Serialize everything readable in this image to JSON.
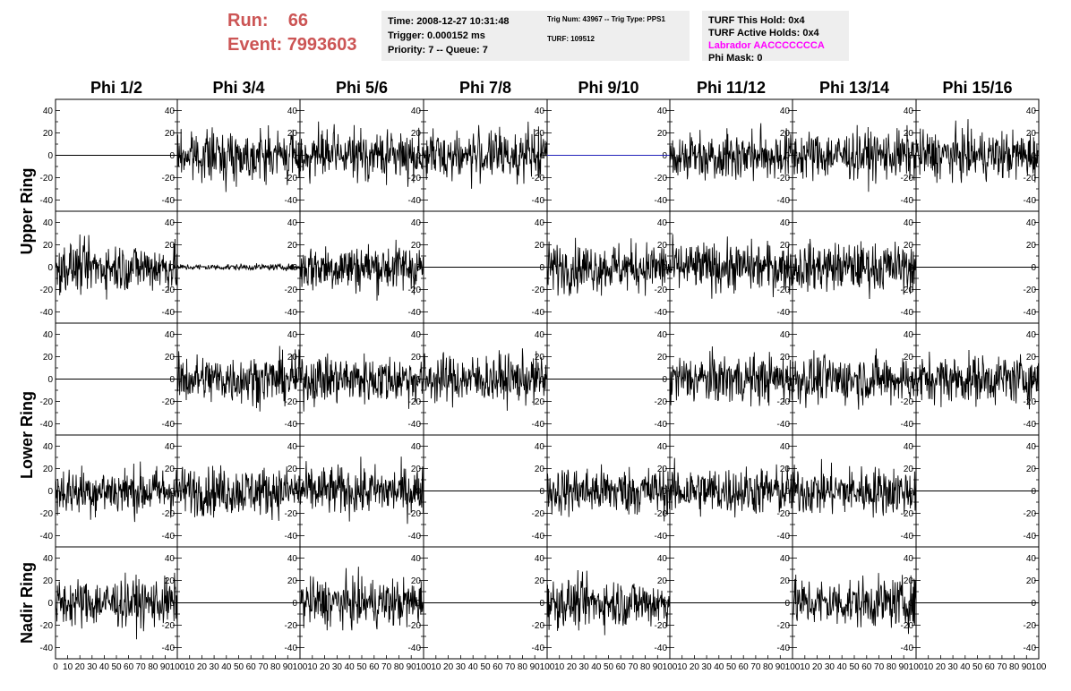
{
  "header": {
    "run_label": "Run:",
    "run_value": "66",
    "event_label": "Event:",
    "event_value": "7993603",
    "accent_color": "#cc5555"
  },
  "info_boxes": {
    "box1": [
      "Time: 2008-12-27 10:31:48",
      "Trigger: 0.000152 ms",
      "Priority: 7 -- Queue: 7"
    ],
    "box2": [
      "Trig Num: 43967 -- Trig Type: PPS1",
      "",
      "TURF: 109512"
    ],
    "box3": [
      "TURF This Hold: 0x4",
      "TURF Active Holds: 0x4",
      "Labrador AACCCCCCCA",
      "Phi Mask: 0"
    ],
    "labrador_color": "#ff00ff"
  },
  "grid": {
    "column_titles": [
      "Phi 1/2",
      "Phi 3/4",
      "Phi 5/6",
      "Phi 7/8",
      "Phi 9/10",
      "Phi 11/12",
      "Phi 13/14",
      "Phi 15/16"
    ],
    "ring_labels": [
      {
        "text": "Upper Ring",
        "rows": [
          0,
          1
        ]
      },
      {
        "text": "Lower Ring",
        "rows": [
          2,
          3
        ]
      },
      {
        "text": "Nadir Ring",
        "rows": [
          4,
          4
        ]
      }
    ],
    "y_ticks": [
      "40",
      "20",
      "0",
      "-20",
      "-40"
    ],
    "x_tick_labels": [
      "0",
      "10",
      "20",
      "30",
      "40",
      "50",
      "60",
      "70",
      "80",
      "90",
      "100"
    ],
    "trace_colors": {
      "normal": "#000000",
      "highlight": "#2222bb"
    }
  },
  "chart_data": {
    "type": "line",
    "title": "",
    "xlabel": "",
    "ylabel": "",
    "xlim": [
      0,
      100
    ],
    "ylim": [
      -50,
      50
    ],
    "cells": [
      [
        "flat",
        "noise",
        "noise",
        "noise",
        "flat-blue",
        "noise",
        "noise",
        "noise"
      ],
      [
        "noise",
        "small-noise",
        "noise",
        "flat",
        "noise",
        "noise",
        "noise",
        "flat"
      ],
      [
        "flat",
        "noise",
        "noise",
        "noise",
        "flat",
        "noise",
        "noise",
        "noise"
      ],
      [
        "noise",
        "noise",
        "noise",
        "flat",
        "noise",
        "noise",
        "noise",
        "flat"
      ],
      [
        "noise",
        "flat",
        "noise",
        "flat",
        "noise",
        "flat",
        "noise",
        "flat"
      ]
    ]
  }
}
